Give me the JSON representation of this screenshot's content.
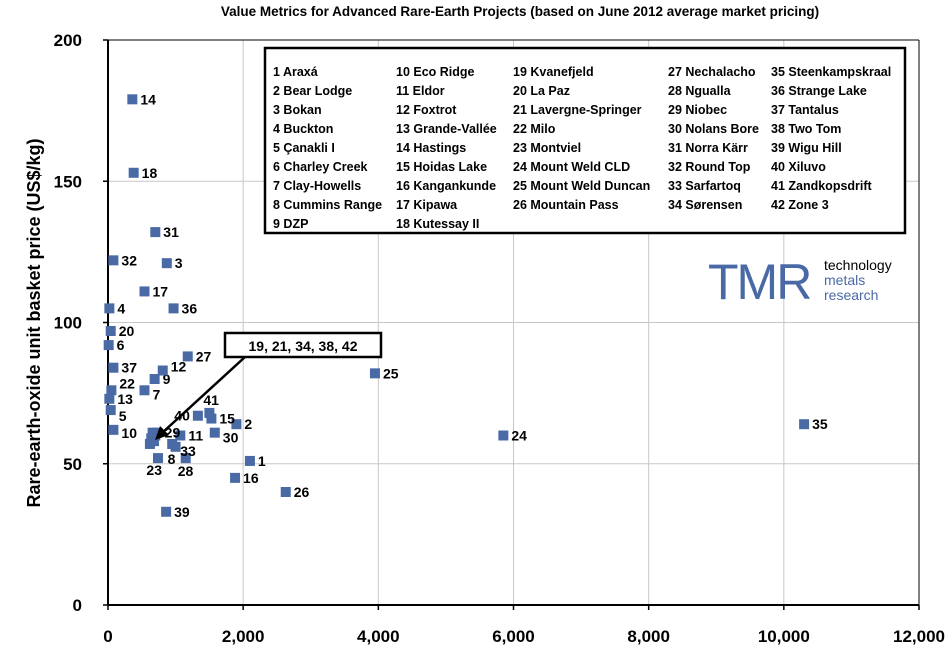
{
  "chart_data": {
    "type": "scatter",
    "title": "Value Metrics for Advanced Rare-Earth Projects (based on June 2012 average market pricing)",
    "xlabel": "",
    "ylabel": "Rare-earth-oxide unit basket price (US$/kg)",
    "xlim": [
      0,
      12000
    ],
    "ylim": [
      0,
      200
    ],
    "x_ticks": [
      "0",
      "2,000",
      "4,000",
      "6,000",
      "8,000",
      "10,000",
      "12,000"
    ],
    "y_ticks": [
      "0",
      "50",
      "100",
      "150",
      "200"
    ],
    "grid": true,
    "marker_color": "#4a6aa5",
    "legend_placement": "top-right",
    "legend": [
      "1 Araxá",
      "2 Bear Lodge",
      "3 Bokan",
      "4 Buckton",
      "5 Çanakli I",
      "6 Charley Creek",
      "7 Clay-Howells",
      "8 Cummins Range",
      "9 DZP",
      "10 Eco Ridge",
      "11 Eldor",
      "12 Foxtrot",
      "13 Grande-Vallée",
      "14 Hastings",
      "15 Hoidas Lake",
      "16 Kangankunde",
      "17 Kipawa",
      "18 Kutessay II",
      "19 Kvanefjeld",
      "20 La Paz",
      "21 Lavergne-Springer",
      "22 Milo",
      "23 Montviel",
      "24 Mount Weld CLD",
      "25 Mount Weld Duncan",
      "26 Mountain Pass",
      "27 Nechalacho",
      "28 Ngualla",
      "29 Niobec",
      "30 Nolans Bore",
      "31 Norra Kärr",
      "32 Round Top",
      "33 Sarfartoq",
      "34 Sørensen",
      "35 Steenkampskraal",
      "36 Strange Lake",
      "37 Tantalus",
      "38 Two Tom",
      "39 Wigu Hill",
      "40 Xiluvo",
      "41 Zandkopsdrift",
      "42 Zone 3"
    ],
    "annotation": "19, 21, 34, 38, 42",
    "points": [
      {
        "id": "1",
        "x": 2100,
        "y": 51
      },
      {
        "id": "2",
        "x": 1900,
        "y": 64
      },
      {
        "id": "3",
        "x": 870,
        "y": 121
      },
      {
        "id": "4",
        "x": 20,
        "y": 105
      },
      {
        "id": "5",
        "x": 40,
        "y": 69
      },
      {
        "id": "6",
        "x": 10,
        "y": 92
      },
      {
        "id": "7",
        "x": 540,
        "y": 76
      },
      {
        "id": "8",
        "x": 1000,
        "y": 56
      },
      {
        "id": "9",
        "x": 690,
        "y": 80
      },
      {
        "id": "10",
        "x": 80,
        "y": 62
      },
      {
        "id": "11",
        "x": 1070,
        "y": 60
      },
      {
        "id": "12",
        "x": 810,
        "y": 83
      },
      {
        "id": "13",
        "x": 20,
        "y": 73
      },
      {
        "id": "14",
        "x": 360,
        "y": 179
      },
      {
        "id": "15",
        "x": 1530,
        "y": 66
      },
      {
        "id": "16",
        "x": 1880,
        "y": 45
      },
      {
        "id": "17",
        "x": 540,
        "y": 111
      },
      {
        "id": "18",
        "x": 380,
        "y": 153
      },
      {
        "id": "19",
        "x": 640,
        "y": 59
      },
      {
        "id": "20",
        "x": 40,
        "y": 97
      },
      {
        "id": "21",
        "x": 680,
        "y": 58
      },
      {
        "id": "22",
        "x": 50,
        "y": 76
      },
      {
        "id": "23",
        "x": 740,
        "y": 52
      },
      {
        "id": "24",
        "x": 5850,
        "y": 60
      },
      {
        "id": "25",
        "x": 3950,
        "y": 82
      },
      {
        "id": "26",
        "x": 2630,
        "y": 40
      },
      {
        "id": "27",
        "x": 1180,
        "y": 88
      },
      {
        "id": "28",
        "x": 1150,
        "y": 52
      },
      {
        "id": "29",
        "x": 720,
        "y": 61
      },
      {
        "id": "30",
        "x": 1580,
        "y": 61
      },
      {
        "id": "31",
        "x": 700,
        "y": 132
      },
      {
        "id": "32",
        "x": 80,
        "y": 122
      },
      {
        "id": "33",
        "x": 950,
        "y": 57
      },
      {
        "id": "34",
        "x": 660,
        "y": 61
      },
      {
        "id": "35",
        "x": 10300,
        "y": 64
      },
      {
        "id": "36",
        "x": 970,
        "y": 105
      },
      {
        "id": "37",
        "x": 80,
        "y": 84
      },
      {
        "id": "38",
        "x": 700,
        "y": 60
      },
      {
        "id": "39",
        "x": 860,
        "y": 33
      },
      {
        "id": "40",
        "x": 1330,
        "y": 67
      },
      {
        "id": "41",
        "x": 1500,
        "y": 68
      },
      {
        "id": "42",
        "x": 620,
        "y": 57
      }
    ],
    "hidden_labels": [
      "19",
      "21",
      "34",
      "38",
      "42"
    ]
  },
  "logo": {
    "mark": "TMR",
    "line1": "technology",
    "line2": "metals",
    "line3": "research"
  }
}
